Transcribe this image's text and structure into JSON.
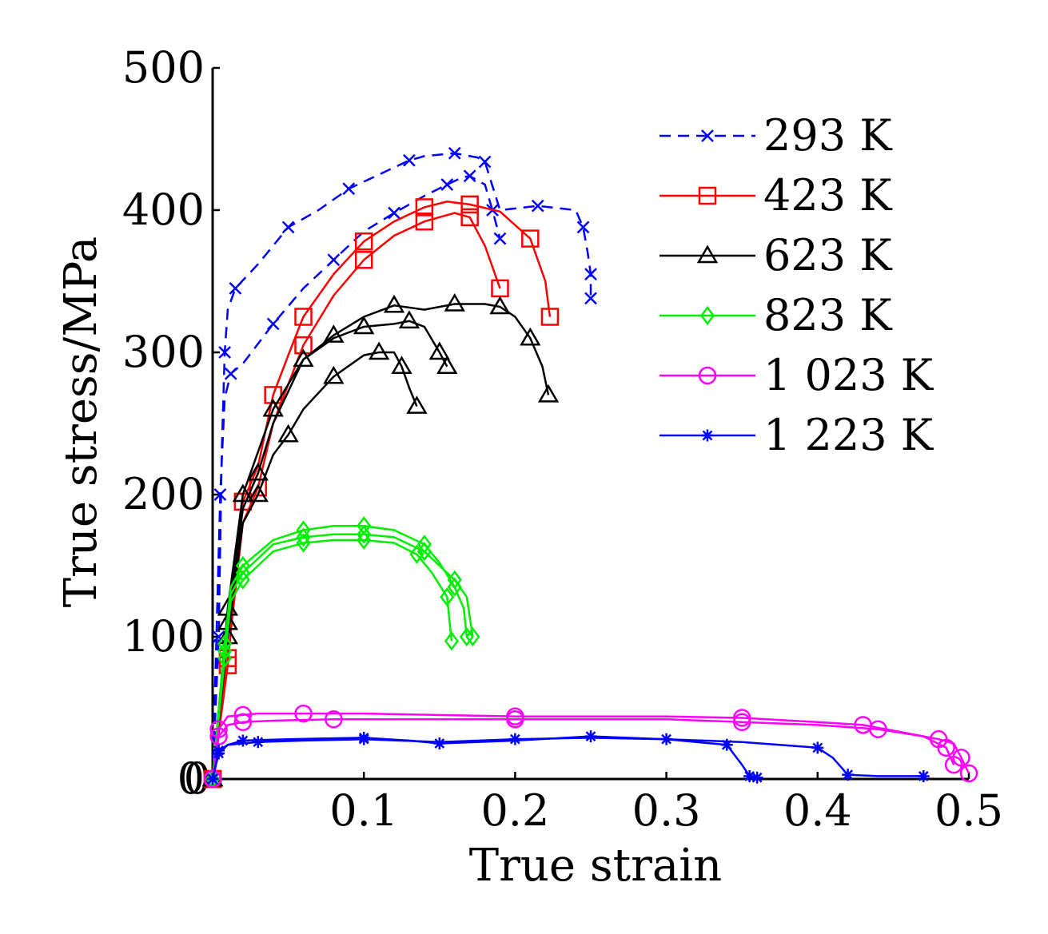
{
  "chart_data": {
    "type": "line",
    "xlabel": "True strain",
    "ylabel": "True stress/MPa",
    "xlim": [
      0,
      0.5
    ],
    "ylim": [
      0,
      500
    ],
    "x_ticks": [
      0.1,
      0.2,
      0.3,
      0.4,
      0.5
    ],
    "x_tick_labels": [
      "0.1",
      "0.2",
      "0.3",
      "0.4",
      "0.5"
    ],
    "y_ticks": [
      0,
      100,
      200,
      300,
      400,
      500
    ],
    "y_tick_labels": [
      "0",
      "100",
      "200",
      "300",
      "400",
      "500"
    ],
    "x_origin_label": "0",
    "grid": false,
    "legend_position": "top-right",
    "series": [
      {
        "name": "293 K",
        "color": "#0000ff",
        "dash": "dash",
        "marker": "x",
        "curves": [
          [
            [
              0,
              0
            ],
            [
              0.004,
              100
            ],
            [
              0.006,
              230
            ],
            [
              0.008,
              300
            ],
            [
              0.01,
              330
            ],
            [
              0.015,
              345
            ],
            [
              0.03,
              362
            ],
            [
              0.05,
              388
            ],
            [
              0.07,
              400
            ],
            [
              0.09,
              415
            ],
            [
              0.11,
              425
            ],
            [
              0.13,
              435
            ],
            [
              0.14,
              438
            ],
            [
              0.16,
              440
            ],
            [
              0.175,
              437
            ],
            [
              0.18,
              434
            ],
            [
              0.19,
              400
            ],
            [
              0.215,
              403
            ],
            [
              0.24,
              400
            ],
            [
              0.245,
              388
            ],
            [
              0.248,
              370
            ],
            [
              0.25,
              355
            ],
            [
              0.25,
              338
            ]
          ],
          [
            [
              0,
              0
            ],
            [
              0.005,
              200
            ],
            [
              0.008,
              268
            ],
            [
              0.012,
              285
            ],
            [
              0.02,
              292
            ],
            [
              0.04,
              320
            ],
            [
              0.06,
              345
            ],
            [
              0.08,
              365
            ],
            [
              0.1,
              385
            ],
            [
              0.12,
              398
            ],
            [
              0.14,
              410
            ],
            [
              0.155,
              418
            ],
            [
              0.165,
              423
            ],
            [
              0.17,
              424
            ],
            [
              0.18,
              418
            ],
            [
              0.185,
              400
            ],
            [
              0.19,
              380
            ]
          ]
        ]
      },
      {
        "name": "423 K",
        "color": "#ff0000",
        "dash": "solid",
        "marker": "square",
        "curves": [
          [
            [
              0,
              0
            ],
            [
              0.01,
              80
            ],
            [
              0.015,
              140
            ],
            [
              0.02,
              195
            ],
            [
              0.03,
              220
            ],
            [
              0.04,
              270
            ],
            [
              0.05,
              298
            ],
            [
              0.06,
              325
            ],
            [
              0.08,
              355
            ],
            [
              0.1,
              378
            ],
            [
              0.12,
              392
            ],
            [
              0.14,
              402
            ],
            [
              0.155,
              406
            ],
            [
              0.17,
              404
            ],
            [
              0.19,
              399
            ],
            [
              0.21,
              380
            ],
            [
              0.22,
              350
            ],
            [
              0.223,
              325
            ]
          ],
          [
            [
              0,
              0
            ],
            [
              0.01,
              85
            ],
            [
              0.02,
              180
            ],
            [
              0.03,
              205
            ],
            [
              0.04,
              250
            ],
            [
              0.06,
              305
            ],
            [
              0.08,
              340
            ],
            [
              0.1,
              365
            ],
            [
              0.12,
              382
            ],
            [
              0.14,
              392
            ],
            [
              0.16,
              398
            ],
            [
              0.17,
              395
            ],
            [
              0.18,
              375
            ],
            [
              0.19,
              345
            ]
          ]
        ]
      },
      {
        "name": "623 K",
        "color": "#000000",
        "dash": "solid",
        "marker": "triangle",
        "curves": [
          [
            [
              0,
              0
            ],
            [
              0.01,
              120
            ],
            [
              0.015,
              160
            ],
            [
              0.02,
              200
            ],
            [
              0.03,
              230
            ],
            [
              0.04,
              260
            ],
            [
              0.06,
              295
            ],
            [
              0.08,
              312
            ],
            [
              0.1,
              325
            ],
            [
              0.12,
              333
            ],
            [
              0.14,
              330
            ],
            [
              0.16,
              334
            ],
            [
              0.18,
              334
            ],
            [
              0.19,
              332
            ],
            [
              0.2,
              325
            ],
            [
              0.21,
              310
            ],
            [
              0.218,
              290
            ],
            [
              0.222,
              270
            ]
          ],
          [
            [
              0,
              0
            ],
            [
              0.01,
              110
            ],
            [
              0.02,
              190
            ],
            [
              0.03,
              215
            ],
            [
              0.04,
              250
            ],
            [
              0.06,
              295
            ],
            [
              0.08,
              310
            ],
            [
              0.1,
              318
            ],
            [
              0.12,
              320
            ],
            [
              0.13,
              322
            ],
            [
              0.14,
              318
            ],
            [
              0.15,
              300
            ],
            [
              0.155,
              290
            ]
          ],
          [
            [
              0,
              0
            ],
            [
              0.01,
              100
            ],
            [
              0.02,
              180
            ],
            [
              0.03,
              200
            ],
            [
              0.04,
              228
            ],
            [
              0.05,
              242
            ],
            [
              0.06,
              260
            ],
            [
              0.08,
              283
            ],
            [
              0.1,
              298
            ],
            [
              0.11,
              300
            ],
            [
              0.12,
              300
            ],
            [
              0.125,
              290
            ],
            [
              0.13,
              275
            ],
            [
              0.135,
              262
            ]
          ]
        ]
      },
      {
        "name": "823 K",
        "color": "#00ee00",
        "dash": "solid",
        "marker": "diamond",
        "curves": [
          [
            [
              0,
              0
            ],
            [
              0.008,
              90
            ],
            [
              0.012,
              130
            ],
            [
              0.02,
              145
            ],
            [
              0.04,
              165
            ],
            [
              0.06,
              170
            ],
            [
              0.08,
              172
            ],
            [
              0.1,
              172
            ],
            [
              0.12,
              170
            ],
            [
              0.14,
              160
            ],
            [
              0.15,
              150
            ],
            [
              0.16,
              140
            ],
            [
              0.168,
              128
            ],
            [
              0.172,
              100
            ]
          ],
          [
            [
              0,
              0
            ],
            [
              0.008,
              95
            ],
            [
              0.012,
              135
            ],
            [
              0.02,
              150
            ],
            [
              0.04,
              168
            ],
            [
              0.06,
              175
            ],
            [
              0.08,
              178
            ],
            [
              0.1,
              178
            ],
            [
              0.12,
              175
            ],
            [
              0.14,
              165
            ],
            [
              0.15,
              152
            ],
            [
              0.16,
              135
            ],
            [
              0.166,
              120
            ],
            [
              0.168,
              100
            ]
          ],
          [
            [
              0,
              0
            ],
            [
              0.008,
              85
            ],
            [
              0.012,
              125
            ],
            [
              0.02,
              140
            ],
            [
              0.04,
              160
            ],
            [
              0.06,
              166
            ],
            [
              0.08,
              168
            ],
            [
              0.1,
              168
            ],
            [
              0.12,
              166
            ],
            [
              0.135,
              158
            ],
            [
              0.145,
              145
            ],
            [
              0.155,
              128
            ],
            [
              0.158,
              97
            ]
          ]
        ]
      },
      {
        "name": "1 023 K",
        "color": "#ff00ff",
        "dash": "solid",
        "marker": "circle",
        "curves": [
          [
            [
              0,
              0
            ],
            [
              0.004,
              35
            ],
            [
              0.01,
              44
            ],
            [
              0.02,
              45
            ],
            [
              0.03,
              46
            ],
            [
              0.06,
              46
            ],
            [
              0.1,
              46
            ],
            [
              0.2,
              44
            ],
            [
              0.3,
              44
            ],
            [
              0.35,
              43
            ],
            [
              0.4,
              40
            ],
            [
              0.43,
              38
            ],
            [
              0.46,
              32
            ],
            [
              0.48,
              28
            ],
            [
              0.49,
              25
            ],
            [
              0.495,
              15
            ],
            [
              0.5,
              4
            ]
          ],
          [
            [
              0,
              0
            ],
            [
              0.004,
              30
            ],
            [
              0.01,
              38
            ],
            [
              0.02,
              40
            ],
            [
              0.04,
              41
            ],
            [
              0.08,
              42
            ],
            [
              0.12,
              42
            ],
            [
              0.2,
              42
            ],
            [
              0.3,
              42
            ],
            [
              0.35,
              40
            ],
            [
              0.4,
              38
            ],
            [
              0.44,
              35
            ],
            [
              0.47,
              30
            ],
            [
              0.485,
              22
            ],
            [
              0.49,
              10
            ]
          ]
        ]
      },
      {
        "name": "1 223 K",
        "color": "#0000ff",
        "dash": "solid",
        "marker": "star",
        "curves": [
          [
            [
              0,
              0
            ],
            [
              0.004,
              18
            ],
            [
              0.01,
              24
            ],
            [
              0.02,
              27
            ],
            [
              0.05,
              28
            ],
            [
              0.1,
              29
            ],
            [
              0.13,
              27
            ],
            [
              0.15,
              25
            ],
            [
              0.2,
              27
            ],
            [
              0.25,
              30
            ],
            [
              0.3,
              28
            ],
            [
              0.34,
              24
            ],
            [
              0.35,
              10
            ],
            [
              0.355,
              2
            ],
            [
              0.36,
              1
            ]
          ],
          [
            [
              0,
              0
            ],
            [
              0.004,
              20
            ],
            [
              0.01,
              24
            ],
            [
              0.03,
              26
            ],
            [
              0.06,
              27
            ],
            [
              0.1,
              28
            ],
            [
              0.15,
              26
            ],
            [
              0.2,
              28
            ],
            [
              0.25,
              29
            ],
            [
              0.3,
              28
            ],
            [
              0.35,
              26
            ],
            [
              0.4,
              22
            ],
            [
              0.41,
              15
            ],
            [
              0.42,
              3
            ],
            [
              0.44,
              2
            ],
            [
              0.47,
              2
            ]
          ]
        ]
      }
    ]
  }
}
